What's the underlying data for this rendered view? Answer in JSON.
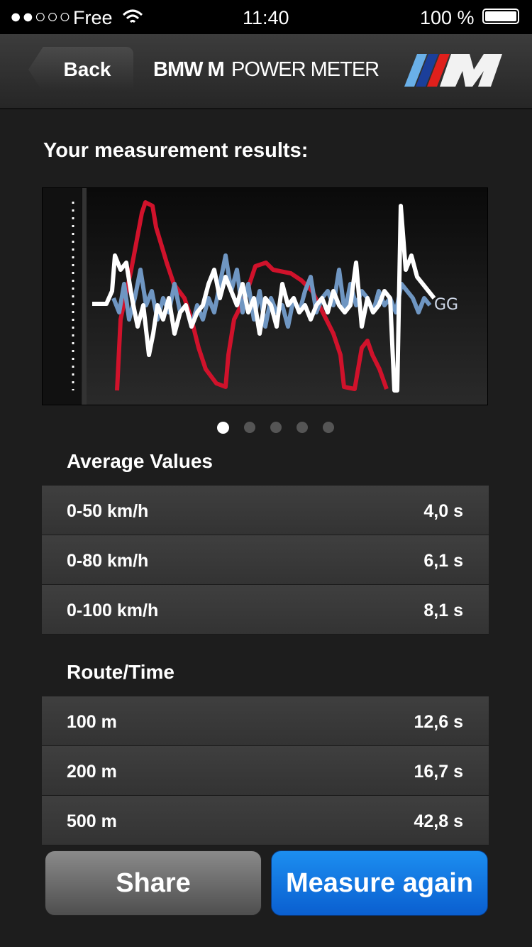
{
  "status": {
    "carrier": "Free",
    "time": "11:40",
    "battery": "100 %"
  },
  "nav": {
    "back": "Back",
    "title_bold": "BMW M",
    "title_light": "POWER METER"
  },
  "heading": "Your measurement results:",
  "chart_label": "GG",
  "sections": [
    {
      "title": "Average Values",
      "rows": [
        [
          "0-50 km/h",
          "4,0 s"
        ],
        [
          "0-80 km/h",
          "6,1 s"
        ],
        [
          "0-100 km/h",
          "8,1 s"
        ]
      ]
    },
    {
      "title": "Route/Time",
      "rows": [
        [
          "100 m",
          "12,6 s"
        ],
        [
          "200 m",
          "16,7 s"
        ],
        [
          "500 m",
          "42,8 s"
        ]
      ]
    }
  ],
  "buttons": {
    "share": "Share",
    "measure": "Measure again"
  }
}
